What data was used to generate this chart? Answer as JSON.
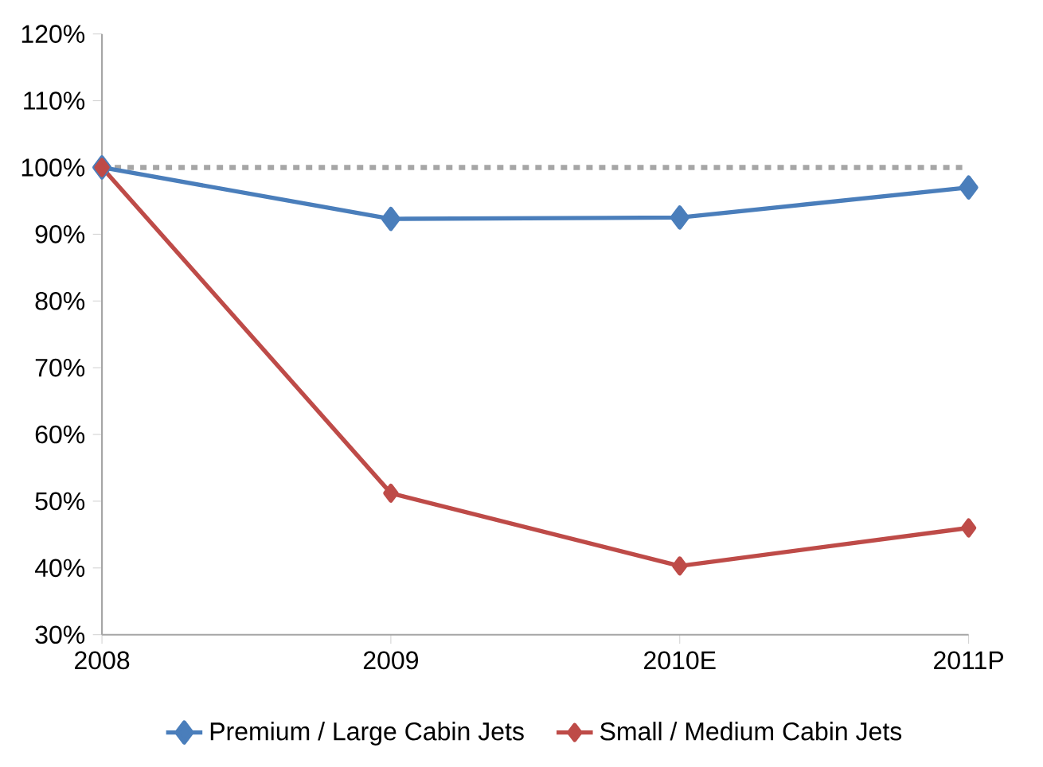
{
  "chart_data": {
    "type": "line",
    "categories": [
      "2008",
      "2009",
      "2010E",
      "2011P"
    ],
    "series": [
      {
        "name": "Premium / Large Cabin Jets",
        "color": "#4a7ebb",
        "values": [
          100,
          92.3,
          92.5,
          97
        ]
      },
      {
        "name": "Small / Medium Cabin Jets",
        "color": "#be4b48",
        "values": [
          100,
          51.2,
          40.3,
          46
        ]
      }
    ],
    "ylim": [
      30,
      120
    ],
    "yticks": [
      {
        "value": 30,
        "label": "30%"
      },
      {
        "value": 40,
        "label": "40%"
      },
      {
        "value": 50,
        "label": "50%"
      },
      {
        "value": 60,
        "label": "60%"
      },
      {
        "value": 70,
        "label": "70%"
      },
      {
        "value": 80,
        "label": "80%"
      },
      {
        "value": 90,
        "label": "90%"
      },
      {
        "value": 100,
        "label": "100%"
      },
      {
        "value": 110,
        "label": "110%"
      },
      {
        "value": 120,
        "label": "120%"
      }
    ],
    "ref_lines": [
      {
        "axis": "y",
        "value": 100,
        "color": "#a6a6a6",
        "line_style": "dotted"
      }
    ],
    "grid": false,
    "legend": "bottom",
    "marker": "diamond",
    "line_style": "solid"
  }
}
